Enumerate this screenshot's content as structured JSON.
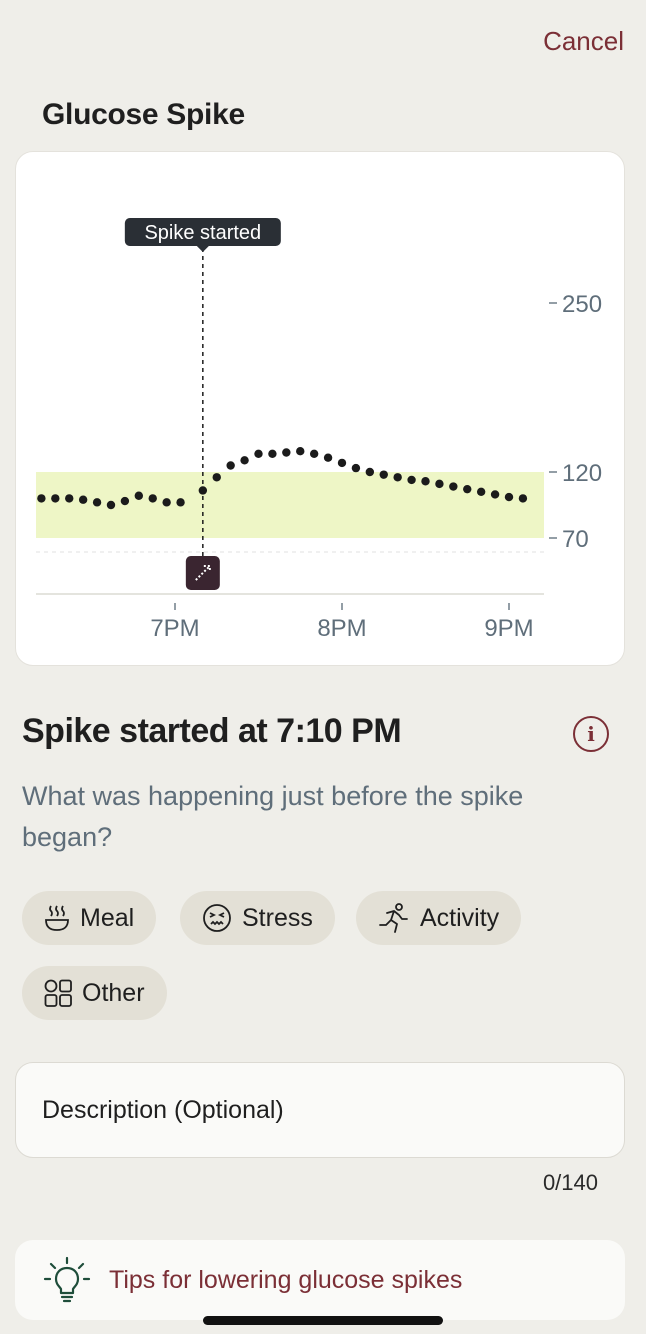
{
  "header": {
    "cancel_label": "Cancel",
    "title": "Glucose Spike"
  },
  "chart_data": {
    "type": "scatter",
    "title": "",
    "xlabel": "",
    "ylabel": "",
    "x_ticks": [
      "7PM",
      "8PM",
      "9PM"
    ],
    "y_ticks": [
      250,
      120,
      70
    ],
    "target_range": [
      70,
      120
    ],
    "marker": {
      "label": "Spike started",
      "time": "7:10PM"
    },
    "points": [
      {
        "t": "6:12PM",
        "v": 100
      },
      {
        "t": "6:17PM",
        "v": 100
      },
      {
        "t": "6:22PM",
        "v": 100
      },
      {
        "t": "6:27PM",
        "v": 99
      },
      {
        "t": "6:32PM",
        "v": 97
      },
      {
        "t": "6:37PM",
        "v": 95
      },
      {
        "t": "6:42PM",
        "v": 98
      },
      {
        "t": "6:47PM",
        "v": 102
      },
      {
        "t": "6:52PM",
        "v": 100
      },
      {
        "t": "6:57PM",
        "v": 97
      },
      {
        "t": "7:02PM",
        "v": 97
      },
      {
        "t": "7:10PM",
        "v": 106
      },
      {
        "t": "7:15PM",
        "v": 116
      },
      {
        "t": "7:20PM",
        "v": 125
      },
      {
        "t": "7:25PM",
        "v": 129
      },
      {
        "t": "7:30PM",
        "v": 134
      },
      {
        "t": "7:35PM",
        "v": 134
      },
      {
        "t": "7:40PM",
        "v": 135
      },
      {
        "t": "7:45PM",
        "v": 136
      },
      {
        "t": "7:50PM",
        "v": 134
      },
      {
        "t": "7:55PM",
        "v": 131
      },
      {
        "t": "8:00PM",
        "v": 127
      },
      {
        "t": "8:05PM",
        "v": 123
      },
      {
        "t": "8:10PM",
        "v": 120
      },
      {
        "t": "8:15PM",
        "v": 118
      },
      {
        "t": "8:20PM",
        "v": 116
      },
      {
        "t": "8:25PM",
        "v": 114
      },
      {
        "t": "8:30PM",
        "v": 113
      },
      {
        "t": "8:35PM",
        "v": 111
      },
      {
        "t": "8:40PM",
        "v": 109
      },
      {
        "t": "8:45PM",
        "v": 107
      },
      {
        "t": "8:50PM",
        "v": 105
      },
      {
        "t": "8:55PM",
        "v": 103
      },
      {
        "t": "9:00PM",
        "v": 101
      },
      {
        "t": "9:05PM",
        "v": 100
      }
    ],
    "grid": false,
    "range_color": "#eef6c6",
    "point_color": "#1b1b1b"
  },
  "spike": {
    "heading": "Spike started at 7:10 PM",
    "question": "What was happening just before the spike began?"
  },
  "causes": [
    {
      "label": "Meal",
      "icon": "bowl-icon"
    },
    {
      "label": "Stress",
      "icon": "stressed-face-icon"
    },
    {
      "label": "Activity",
      "icon": "running-icon"
    },
    {
      "label": "Other",
      "icon": "grid-icon"
    }
  ],
  "description": {
    "placeholder": "Description (Optional)",
    "counter": "0/140"
  },
  "tips": {
    "label": "Tips for lowering glucose spikes"
  },
  "colors": {
    "accent": "#7b2f36",
    "background": "#efeee9",
    "chip": "#e3e0d6",
    "marker_badge": "#3a2530"
  }
}
